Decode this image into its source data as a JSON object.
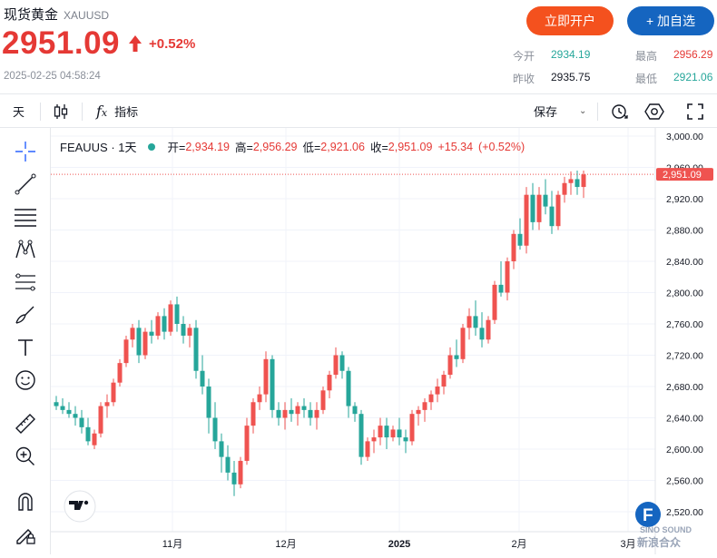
{
  "header": {
    "title": "现货黄金",
    "code": "XAUUSD",
    "price": "2951.09",
    "change_pct": "+0.52%",
    "timestamp": "2025-02-25 04:58:24",
    "open_account_label": "立即开户",
    "add_watchlist_label": "+ 加自选"
  },
  "stats": {
    "open_label": "今开",
    "open_value": "2934.19",
    "prev_close_label": "昨收",
    "prev_close_value": "2935.75",
    "high_label": "最高",
    "high_value": "2956.29",
    "low_label": "最低",
    "low_value": "2921.06"
  },
  "toolbar": {
    "interval_label": "天",
    "indicator_label": "指标",
    "save_label": "保存"
  },
  "legend": {
    "symbol": "FEAUUS · 1天",
    "o_label": "开=",
    "o_value": "2,934.19",
    "h_label": "高=",
    "h_value": "2,956.29",
    "l_label": "低=",
    "l_value": "2,921.06",
    "c_label": "收=",
    "c_value": "2,951.09",
    "chg_value": "+15.34",
    "chg_pct": "(+0.52%)"
  },
  "chart_data": {
    "type": "candlestick",
    "up_color": "#ef5350",
    "down_color": "#26a69a",
    "y_ticks": [
      "3,000.00",
      "2,960.00",
      "2,920.00",
      "2,880.00",
      "2,840.00",
      "2,800.00",
      "2,760.00",
      "2,720.00",
      "2,680.00",
      "2,640.00",
      "2,600.00",
      "2,560.00",
      "2,520.00"
    ],
    "y_tick_values": [
      3000,
      2960,
      2920,
      2880,
      2840,
      2800,
      2760,
      2720,
      2680,
      2640,
      2600,
      2560,
      2520
    ],
    "x_ticks": [
      "11月",
      "12月",
      "2025",
      "2月",
      "3月"
    ],
    "ylim": [
      2490,
      3020
    ],
    "last_price_label": "2,951.09",
    "last_price": 2951.09,
    "candles": [
      [
        2660,
        2668,
        2650,
        2655
      ],
      [
        2655,
        2665,
        2645,
        2650
      ],
      [
        2650,
        2660,
        2640,
        2645
      ],
      [
        2645,
        2655,
        2630,
        2640
      ],
      [
        2640,
        2650,
        2620,
        2628
      ],
      [
        2628,
        2640,
        2605,
        2610
      ],
      [
        2605,
        2625,
        2600,
        2620
      ],
      [
        2620,
        2660,
        2615,
        2655
      ],
      [
        2655,
        2670,
        2640,
        2660
      ],
      [
        2660,
        2690,
        2655,
        2685
      ],
      [
        2685,
        2715,
        2680,
        2710
      ],
      [
        2710,
        2745,
        2705,
        2740
      ],
      [
        2740,
        2760,
        2730,
        2755
      ],
      [
        2755,
        2765,
        2710,
        2720
      ],
      [
        2720,
        2755,
        2715,
        2750
      ],
      [
        2750,
        2765,
        2735,
        2745
      ],
      [
        2745,
        2775,
        2740,
        2770
      ],
      [
        2770,
        2780,
        2740,
        2750
      ],
      [
        2750,
        2790,
        2745,
        2785
      ],
      [
        2785,
        2795,
        2750,
        2760
      ],
      [
        2760,
        2770,
        2735,
        2745
      ],
      [
        2745,
        2760,
        2730,
        2755
      ],
      [
        2755,
        2765,
        2690,
        2700
      ],
      [
        2700,
        2720,
        2670,
        2680
      ],
      [
        2680,
        2690,
        2620,
        2640
      ],
      [
        2640,
        2660,
        2600,
        2610
      ],
      [
        2610,
        2620,
        2570,
        2590
      ],
      [
        2590,
        2605,
        2560,
        2570
      ],
      [
        2570,
        2585,
        2540,
        2555
      ],
      [
        2555,
        2590,
        2550,
        2585
      ],
      [
        2585,
        2640,
        2580,
        2630
      ],
      [
        2630,
        2665,
        2620,
        2660
      ],
      [
        2660,
        2680,
        2650,
        2670
      ],
      [
        2670,
        2725,
        2660,
        2715
      ],
      [
        2715,
        2720,
        2640,
        2650
      ],
      [
        2650,
        2660,
        2630,
        2640
      ],
      [
        2640,
        2660,
        2625,
        2650
      ],
      [
        2650,
        2665,
        2635,
        2645
      ],
      [
        2645,
        2660,
        2630,
        2655
      ],
      [
        2655,
        2665,
        2640,
        2650
      ],
      [
        2650,
        2660,
        2630,
        2640
      ],
      [
        2640,
        2660,
        2625,
        2650
      ],
      [
        2650,
        2680,
        2645,
        2675
      ],
      [
        2675,
        2700,
        2665,
        2695
      ],
      [
        2695,
        2730,
        2690,
        2720
      ],
      [
        2720,
        2725,
        2690,
        2700
      ],
      [
        2700,
        2705,
        2640,
        2655
      ],
      [
        2655,
        2660,
        2635,
        2645
      ],
      [
        2645,
        2650,
        2580,
        2590
      ],
      [
        2590,
        2615,
        2585,
        2610
      ],
      [
        2610,
        2625,
        2595,
        2615
      ],
      [
        2615,
        2640,
        2605,
        2630
      ],
      [
        2630,
        2640,
        2600,
        2615
      ],
      [
        2615,
        2630,
        2610,
        2625
      ],
      [
        2625,
        2640,
        2605,
        2615
      ],
      [
        2615,
        2625,
        2595,
        2610
      ],
      [
        2610,
        2650,
        2605,
        2645
      ],
      [
        2645,
        2655,
        2630,
        2650
      ],
      [
        2650,
        2665,
        2635,
        2660
      ],
      [
        2660,
        2675,
        2650,
        2670
      ],
      [
        2670,
        2690,
        2660,
        2680
      ],
      [
        2680,
        2700,
        2670,
        2695
      ],
      [
        2695,
        2730,
        2690,
        2720
      ],
      [
        2720,
        2740,
        2705,
        2715
      ],
      [
        2715,
        2760,
        2710,
        2755
      ],
      [
        2755,
        2780,
        2740,
        2770
      ],
      [
        2770,
        2790,
        2745,
        2755
      ],
      [
        2755,
        2775,
        2730,
        2740
      ],
      [
        2740,
        2770,
        2735,
        2765
      ],
      [
        2765,
        2815,
        2760,
        2810
      ],
      [
        2810,
        2840,
        2795,
        2800
      ],
      [
        2800,
        2845,
        2790,
        2840
      ],
      [
        2840,
        2880,
        2830,
        2875
      ],
      [
        2875,
        2895,
        2855,
        2860
      ],
      [
        2860,
        2935,
        2850,
        2925
      ],
      [
        2925,
        2940,
        2880,
        2890
      ],
      [
        2890,
        2935,
        2880,
        2925
      ],
      [
        2925,
        2945,
        2900,
        2910
      ],
      [
        2910,
        2930,
        2875,
        2885
      ],
      [
        2885,
        2930,
        2880,
        2925
      ],
      [
        2925,
        2948,
        2915,
        2940
      ],
      [
        2940,
        2955,
        2925,
        2945
      ],
      [
        2945,
        2956,
        2925,
        2935
      ],
      [
        2935,
        2956,
        2921,
        2951
      ]
    ]
  }
}
